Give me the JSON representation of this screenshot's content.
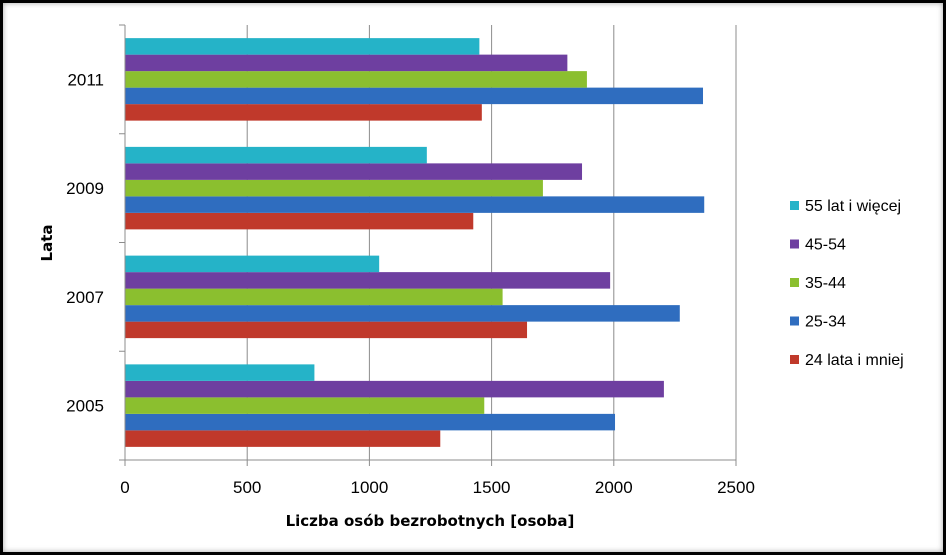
{
  "chart_data": {
    "type": "bar",
    "orientation": "horizontal",
    "title": "",
    "xlabel": "Liczba osób bezrobotnych [osoba]",
    "ylabel": "Lata",
    "categories": [
      "2005",
      "2007",
      "2009",
      "2011"
    ],
    "xlim": [
      0,
      2500
    ],
    "x_ticks": [
      "0",
      "500",
      "1000",
      "1500",
      "2000",
      "2500"
    ],
    "grid": "vertical",
    "legend_position": "right",
    "series": [
      {
        "name": "24 lata i mniej",
        "color": "#C0392B",
        "values": [
          1290,
          1645,
          1425,
          1460
        ]
      },
      {
        "name": "25-34",
        "color": "#2F6DBF",
        "values": [
          2005,
          2270,
          2370,
          2365
        ]
      },
      {
        "name": "35-44",
        "color": "#8BBF2F",
        "values": [
          1470,
          1545,
          1710,
          1890
        ]
      },
      {
        "name": "45-54",
        "color": "#6E3FA0",
        "values": [
          2205,
          1985,
          1870,
          1810
        ]
      },
      {
        "name": "55 lat i więcej",
        "color": "#25B3C8",
        "values": [
          775,
          1040,
          1235,
          1450
        ]
      }
    ]
  }
}
